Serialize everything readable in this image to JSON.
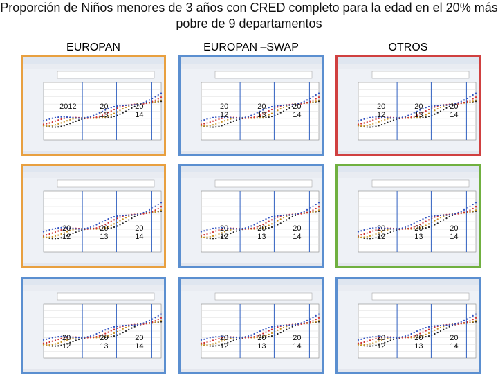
{
  "header": {
    "title": "Proporción de Niños menores de 3 años con CRED completo para la edad en el 20% más pobre de 9 departamentos"
  },
  "columns": [
    "EUROPAN",
    "EUROPAN –SWAP",
    "OTROS"
  ],
  "panels": [
    {
      "frame": "#e8a040",
      "labels": [
        "2012",
        "20 13",
        "20 14"
      ]
    },
    {
      "frame": "#5b8fd0",
      "labels": [
        "20 12",
        "20 13",
        "20 14"
      ]
    },
    {
      "frame": "#d04040",
      "labels": [
        "20 12",
        "20 13",
        "20 14"
      ]
    },
    {
      "frame": "#e8a040",
      "labels": [
        "20 12",
        "20 13",
        "20 14"
      ]
    },
    {
      "frame": "#5b8fd0",
      "labels": [
        "20 12",
        "20 13",
        "20 14"
      ]
    },
    {
      "frame": "#70b040",
      "labels": [
        "20 12",
        "20 13",
        "20 14"
      ]
    },
    {
      "frame": "#5b8fd0",
      "labels": [
        "20 12",
        "20 13",
        "20 14"
      ]
    },
    {
      "frame": "#5b8fd0",
      "labels": [
        "20 12",
        "20 13",
        "20 14"
      ]
    },
    {
      "frame": "#5b8fd0",
      "labels": [
        "20 12",
        "20 13",
        "20 14"
      ]
    }
  ]
}
